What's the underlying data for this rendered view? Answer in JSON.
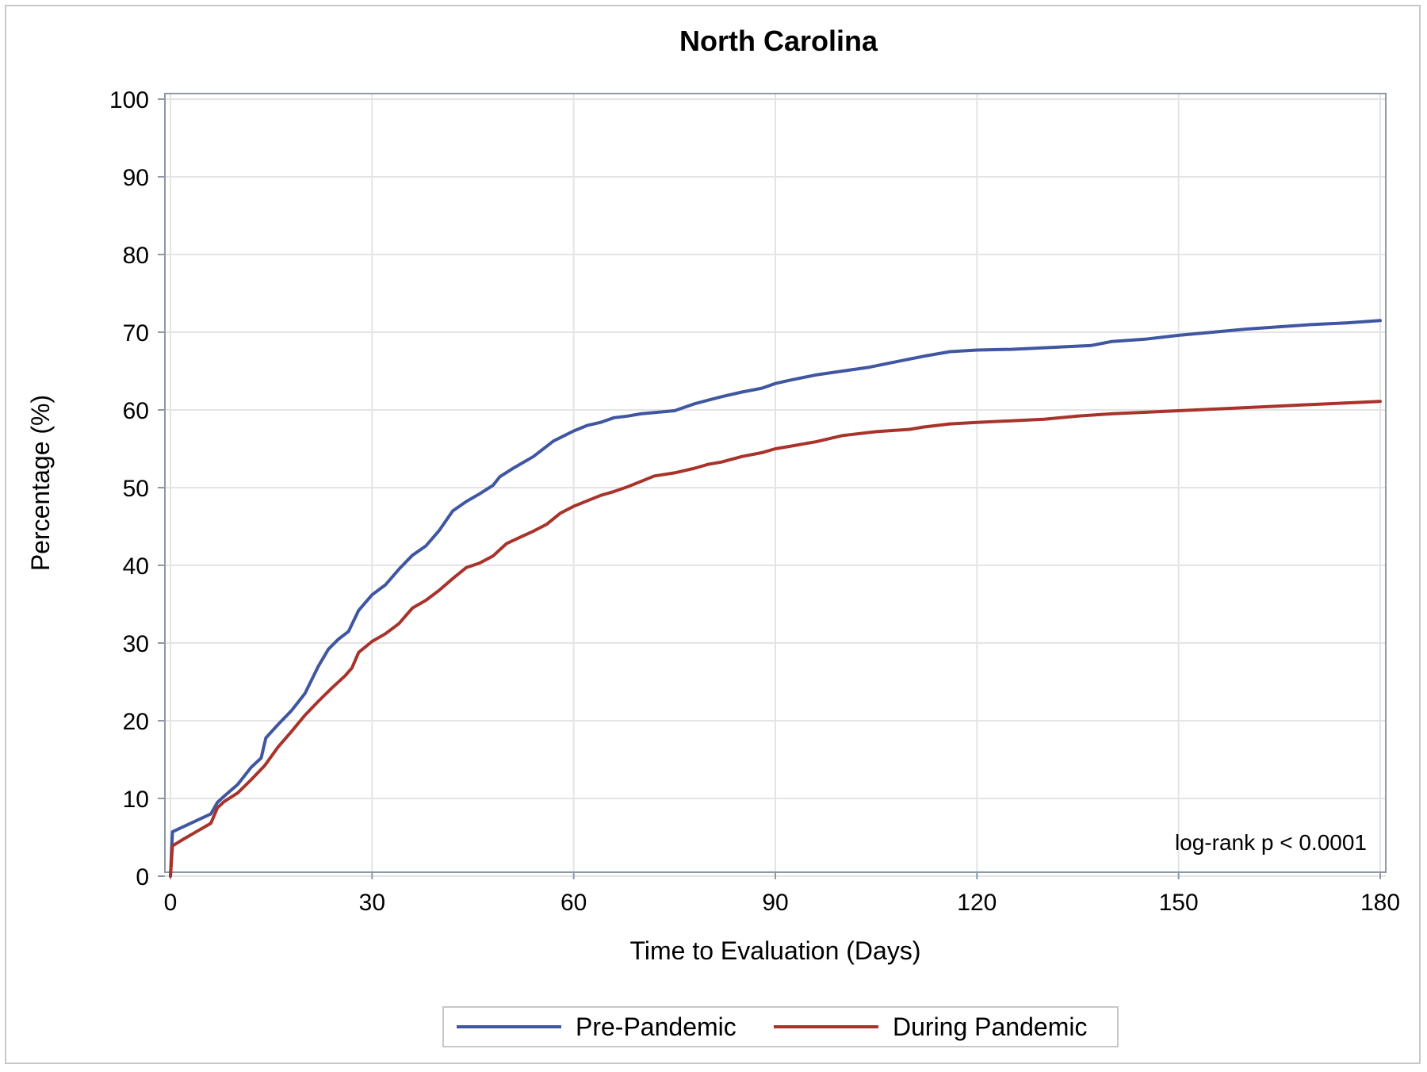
{
  "chart_data": {
    "type": "line",
    "title": "North Carolina",
    "xlabel": "Time to Evaluation (Days)",
    "ylabel": "Percentage (%)",
    "xlim": [
      0,
      180
    ],
    "ylim": [
      0,
      100
    ],
    "xticks": [
      0,
      30,
      60,
      90,
      120,
      150,
      180
    ],
    "yticks": [
      0,
      10,
      20,
      30,
      40,
      50,
      60,
      70,
      80,
      90,
      100
    ],
    "grid": true,
    "legend_position": "bottom",
    "annotation": "log-rank p < 0.0001",
    "colors": {
      "pre": "#3f56a0",
      "during": "#a8332b",
      "grid": "#e4e4e4",
      "axis": "#8c9aa8"
    },
    "series": [
      {
        "name": "Pre-Pandemic",
        "color": "#3f56a0",
        "x": [
          0,
          0.3,
          2,
          4,
          6,
          7,
          8,
          10,
          12,
          13.5,
          14.2,
          16,
          18,
          20,
          22,
          23.5,
          25,
          26.5,
          28,
          30,
          32,
          34,
          36,
          38,
          40,
          42,
          44,
          46,
          48,
          49,
          51,
          54,
          57,
          60,
          62,
          64,
          66,
          68,
          70,
          75,
          78,
          82,
          85,
          88,
          90,
          92,
          96,
          100,
          104,
          108,
          112,
          116,
          120,
          125,
          130,
          137,
          140,
          145,
          150,
          155,
          160,
          165,
          170,
          175,
          180
        ],
        "y": [
          0,
          5.7,
          6.4,
          7.2,
          8.0,
          9.5,
          10.3,
          11.8,
          14,
          15.2,
          17.8,
          19.5,
          21.3,
          23.5,
          27,
          29.2,
          30.5,
          31.5,
          34.2,
          36.2,
          37.5,
          39.5,
          41.3,
          42.5,
          44.5,
          47,
          48.2,
          49.2,
          50.3,
          51.4,
          52.5,
          54,
          56,
          57.3,
          58,
          58.4,
          59,
          59.2,
          59.5,
          59.9,
          60.8,
          61.7,
          62.3,
          62.8,
          63.4,
          63.8,
          64.5,
          65,
          65.5,
          66.2,
          66.9,
          67.5,
          67.7,
          67.8,
          68,
          68.3,
          68.8,
          69.1,
          69.6,
          70,
          70.4,
          70.7,
          71,
          71.2,
          71.5
        ]
      },
      {
        "name": "During Pandemic",
        "color": "#a8332b",
        "x": [
          0,
          0.3,
          2,
          4,
          6,
          7,
          8,
          10,
          12,
          14,
          16,
          18,
          20,
          22,
          24,
          26,
          27,
          28,
          30,
          32,
          34,
          36,
          38,
          40,
          42,
          44,
          46,
          48,
          50,
          52,
          54,
          56,
          58,
          60,
          62,
          64,
          66,
          68,
          70,
          72,
          75,
          78,
          80,
          82,
          85,
          88,
          90,
          92,
          96,
          100,
          105,
          110,
          112,
          116,
          120,
          130,
          135,
          140,
          150,
          160,
          170,
          180
        ],
        "y": [
          0,
          3.9,
          4.8,
          5.8,
          6.8,
          8.8,
          9.6,
          10.7,
          12.4,
          14.2,
          16.6,
          18.6,
          20.7,
          22.5,
          24.2,
          25.8,
          26.8,
          28.8,
          30.2,
          31.2,
          32.5,
          34.5,
          35.5,
          36.8,
          38.3,
          39.7,
          40.3,
          41.2,
          42.8,
          43.6,
          44.4,
          45.3,
          46.7,
          47.6,
          48.3,
          49,
          49.5,
          50.1,
          50.8,
          51.5,
          51.9,
          52.5,
          53,
          53.3,
          54,
          54.5,
          55,
          55.3,
          55.9,
          56.7,
          57.2,
          57.5,
          57.8,
          58.2,
          58.4,
          58.8,
          59.2,
          59.5,
          59.9,
          60.3,
          60.7,
          61.1
        ]
      }
    ]
  }
}
